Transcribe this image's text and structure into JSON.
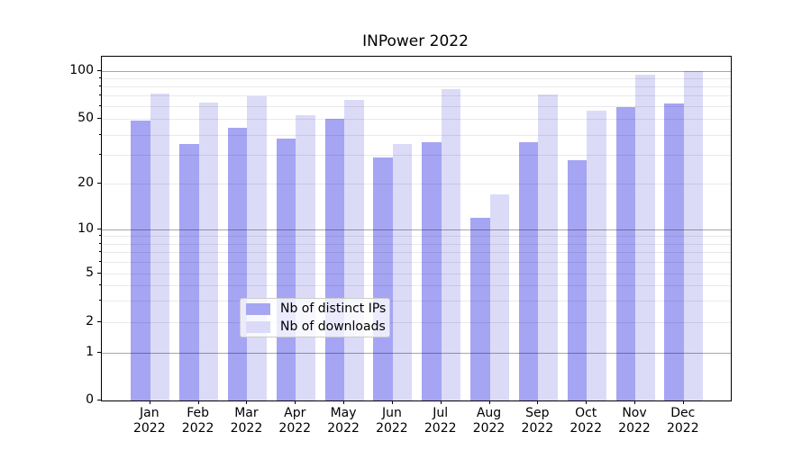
{
  "title": "INPower 2022",
  "legend": {
    "items": [
      {
        "label": "Nb of distinct IPs",
        "color": "#a6a6f3",
        "fill": "rgba(110,110,236,0.62)"
      },
      {
        "label": "Nb of downloads",
        "color": "#dbdbf8",
        "fill": "rgba(197,197,243,0.62)"
      }
    ]
  },
  "y_axis": {
    "tick_labels": [
      "100",
      "50",
      "20",
      "10",
      "5",
      "2",
      "1",
      "0"
    ],
    "tick_values": [
      100,
      50,
      20,
      10,
      5,
      2,
      1,
      0
    ],
    "minor_tick_values": [
      3,
      4,
      6,
      7,
      8,
      9,
      30,
      40,
      60,
      70,
      80,
      90
    ],
    "dark_gridline_values": [
      1,
      10,
      100
    ],
    "light_gridline_values": [
      2,
      3,
      4,
      5,
      6,
      7,
      8,
      9,
      20,
      30,
      40,
      50,
      60,
      70,
      80,
      90
    ]
  },
  "x_axis": {
    "months": [
      "Jan",
      "Feb",
      "Mar",
      "Apr",
      "May",
      "Jun",
      "Jul",
      "Aug",
      "Sep",
      "Oct",
      "Nov",
      "Dec"
    ],
    "year": "2022"
  },
  "chart_data": {
    "type": "bar",
    "title": "INPower 2022",
    "categories": [
      "Jan 2022",
      "Feb 2022",
      "Mar 2022",
      "Apr 2022",
      "May 2022",
      "Jun 2022",
      "Jul 2022",
      "Aug 2022",
      "Sep 2022",
      "Oct 2022",
      "Nov 2022",
      "Dec 2022"
    ],
    "series": [
      {
        "name": "Nb of distinct IPs",
        "values": [
          49,
          35,
          44,
          38,
          50,
          29,
          36,
          12,
          36,
          28,
          59,
          62
        ]
      },
      {
        "name": "Nb of downloads",
        "values": [
          72,
          63,
          69,
          53,
          66,
          35,
          77,
          17,
          71,
          56,
          94,
          100
        ]
      }
    ],
    "xlabel": "",
    "ylabel": "",
    "yscale": "log-like (compressed toward zero, includes 0)",
    "yticks": [
      0,
      1,
      2,
      5,
      10,
      20,
      50,
      100
    ],
    "ylim": [
      0,
      115
    ],
    "grid": "both",
    "legend_position": "lower center"
  }
}
